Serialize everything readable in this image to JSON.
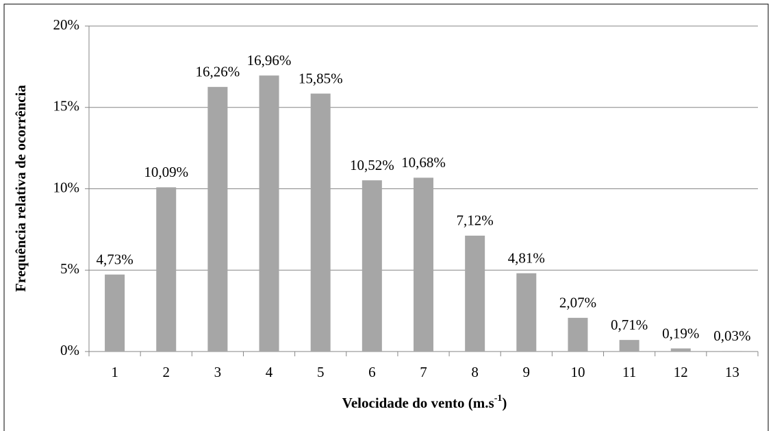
{
  "chart_data": {
    "type": "bar",
    "y_label": "Frequência relativa de ocorrência",
    "x_label": [
      "Velocidade do vento (m.s",
      "-1",
      ")"
    ],
    "categories": [
      "1",
      "2",
      "3",
      "4",
      "5",
      "6",
      "7",
      "8",
      "9",
      "10",
      "11",
      "12",
      "13"
    ],
    "values": [
      4.73,
      10.09,
      16.26,
      16.96,
      15.85,
      10.52,
      10.68,
      7.12,
      4.81,
      2.07,
      0.71,
      0.19,
      0.03
    ],
    "value_labels": [
      "4,73%",
      "10,09%",
      "16,26%",
      "16,96%",
      "15,85%",
      "10,52%",
      "10,68%",
      "7,12%",
      "4,81%",
      "2,07%",
      "0,71%",
      "0,19%",
      "0,03%"
    ],
    "color": "#a6a6a6",
    "ylim": [
      0,
      20
    ],
    "yticks": [
      {
        "value": 0,
        "label": "0%"
      },
      {
        "value": 5,
        "label": "5%"
      },
      {
        "value": 10,
        "label": "10%"
      },
      {
        "value": 15,
        "label": "15%"
      },
      {
        "value": 20,
        "label": "20%"
      }
    ],
    "grid": true
  }
}
